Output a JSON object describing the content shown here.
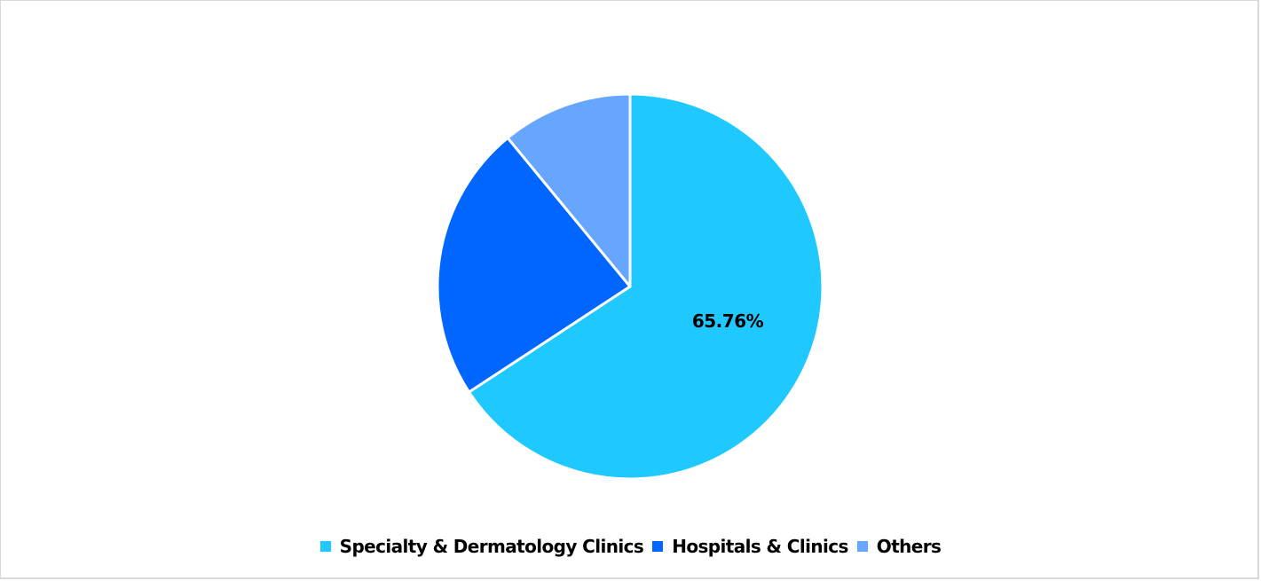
{
  "chart_data": {
    "type": "pie",
    "title": "",
    "categories": [
      "Specialty & Dermatology Clinics",
      "Hospitals & Clinics",
      "Others"
    ],
    "values": [
      65.76,
      23.28,
      10.96
    ],
    "colors": [
      "#1FC9FF",
      "#0066FF",
      "#66A6FF"
    ],
    "data_labels": [
      {
        "category": "Specialty & Dermatology Clinics",
        "text": "65.76%"
      }
    ],
    "start_angle_deg": 0,
    "direction": "clockwise",
    "legend_position": "bottom"
  },
  "labels": {
    "slice0": "65.76%"
  },
  "legend": {
    "items": [
      {
        "label": "Specialty & Dermatology Clinics",
        "color": "#1FC9FF"
      },
      {
        "label": "Hospitals & Clinics",
        "color": "#0066FF"
      },
      {
        "label": "Others",
        "color": "#66A6FF"
      }
    ]
  }
}
